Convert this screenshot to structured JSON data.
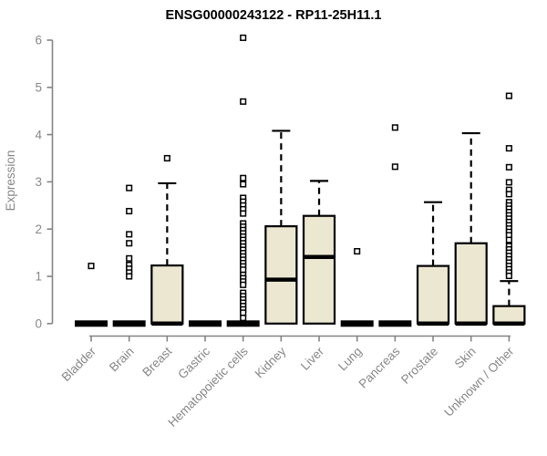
{
  "chart_data": {
    "type": "boxplot",
    "title": "ENSG00000243122 - RP11-25H11.1",
    "ylabel": "Expression",
    "xlabel": "",
    "ylim": [
      0,
      6
    ],
    "yticks": [
      0,
      1,
      2,
      3,
      4,
      5,
      6
    ],
    "grid": false,
    "legend": null,
    "categories": [
      "Bladder",
      "Brain",
      "Breast",
      "Gastric",
      "Hematopoietic cells",
      "Kidney",
      "Liver",
      "Lung",
      "Pancreas",
      "Prostate",
      "Skin",
      "Unknown / Other"
    ],
    "boxes": [
      {
        "label": "Bladder",
        "q1": 0,
        "median": 0,
        "q3": 0,
        "whisker_low": 0,
        "whisker_high": 0,
        "outliers": [
          1.22
        ]
      },
      {
        "label": "Brain",
        "q1": 0,
        "median": 0,
        "q3": 0,
        "whisker_low": 0,
        "whisker_high": 0,
        "outliers": [
          2.87,
          2.38,
          1.89,
          1.7,
          1.38,
          1.24,
          1.16,
          1.08,
          1.0
        ]
      },
      {
        "label": "Breast",
        "q1": 0,
        "median": 0,
        "q3": 1.23,
        "whisker_low": 0,
        "whisker_high": 2.97,
        "outliers": [
          3.5
        ]
      },
      {
        "label": "Gastric",
        "q1": 0,
        "median": 0,
        "q3": 0,
        "whisker_low": 0,
        "whisker_high": 0,
        "outliers": []
      },
      {
        "label": "Hematopoietic cells",
        "q1": 0,
        "median": 0,
        "q3": 0,
        "whisker_low": 0,
        "whisker_high": 0,
        "outliers": [
          6.05,
          4.7,
          3.08,
          2.95,
          2.66,
          2.58,
          2.5,
          2.42,
          2.33,
          2.12,
          2.05,
          1.98,
          1.91,
          1.84,
          1.77,
          1.7,
          1.63,
          1.56,
          1.49,
          1.42,
          1.35,
          1.28,
          1.21,
          1.14,
          1.03,
          0.96,
          0.89,
          0.82,
          0.65,
          0.58,
          0.51,
          0.44,
          0.37,
          0.3,
          0.23,
          0.12
        ]
      },
      {
        "label": "Kidney",
        "q1": 0,
        "median": 0.93,
        "q3": 2.06,
        "whisker_low": 0,
        "whisker_high": 4.08,
        "outliers": []
      },
      {
        "label": "Liver",
        "q1": 0,
        "median": 1.41,
        "q3": 2.28,
        "whisker_low": 0,
        "whisker_high": 3.02,
        "outliers": []
      },
      {
        "label": "Lung",
        "q1": 0,
        "median": 0,
        "q3": 0,
        "whisker_low": 0,
        "whisker_high": 0,
        "outliers": [
          1.53
        ]
      },
      {
        "label": "Pancreas",
        "q1": 0,
        "median": 0,
        "q3": 0,
        "whisker_low": 0,
        "whisker_high": 0,
        "outliers": [
          4.15,
          3.32
        ]
      },
      {
        "label": "Prostate",
        "q1": 0,
        "median": 0,
        "q3": 1.22,
        "whisker_low": 0,
        "whisker_high": 2.57,
        "outliers": []
      },
      {
        "label": "Skin",
        "q1": 0,
        "median": 0,
        "q3": 1.7,
        "whisker_low": 0,
        "whisker_high": 4.03,
        "outliers": []
      },
      {
        "label": "Unknown / Other",
        "q1": 0,
        "median": 0,
        "q3": 0.37,
        "whisker_low": 0,
        "whisker_high": 0.9,
        "outliers": [
          4.82,
          3.71,
          3.31,
          2.99,
          2.83,
          2.74,
          2.57,
          2.5,
          2.43,
          2.36,
          2.29,
          2.22,
          2.15,
          2.08,
          2.01,
          1.94,
          1.87,
          1.77,
          1.64,
          1.57,
          1.5,
          1.43,
          1.36,
          1.29,
          1.22,
          1.15,
          1.08,
          1.01
        ]
      }
    ]
  },
  "style": {
    "background": "#ffffff",
    "box_fill": "#ece7d0",
    "box_stroke": "#000000",
    "median_color": "#000000",
    "whisker_color": "#000000",
    "outlier_stroke": "#000000",
    "outlier_fill": "#ffffff",
    "axis_color": "#848484",
    "label_color": "#878787",
    "title_color": "#000000"
  }
}
